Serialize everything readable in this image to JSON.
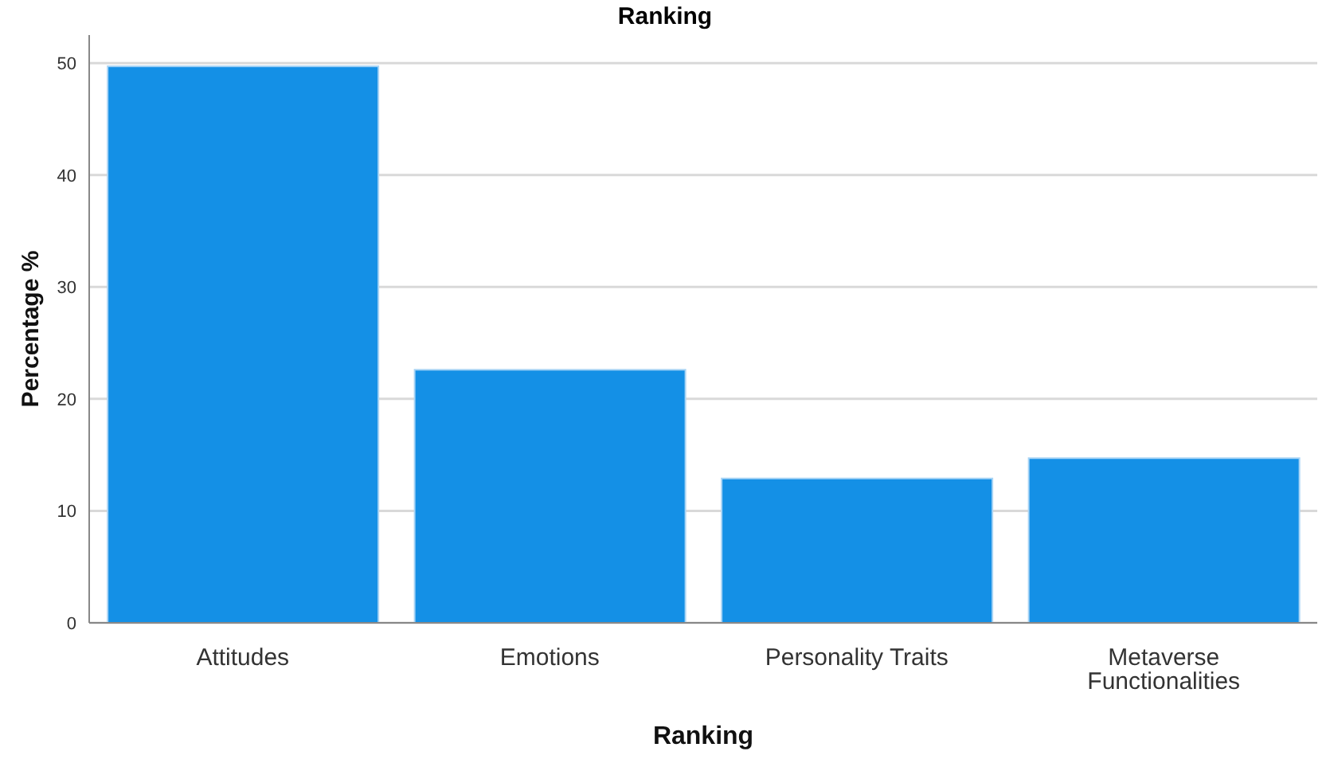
{
  "chart_data": {
    "type": "bar",
    "title": "Ranking",
    "xlabel": "Ranking",
    "ylabel": "Percentage %",
    "categories": [
      "Attitudes",
      "Emotions",
      "Personality Traits",
      "Metaverse Functionalities"
    ],
    "values": [
      49.7,
      22.6,
      12.9,
      14.7
    ],
    "color": "#1490e6",
    "ylim": [
      0,
      52.5
    ],
    "yticks": [
      0,
      10,
      20,
      30,
      40,
      50
    ],
    "grid": "y"
  }
}
